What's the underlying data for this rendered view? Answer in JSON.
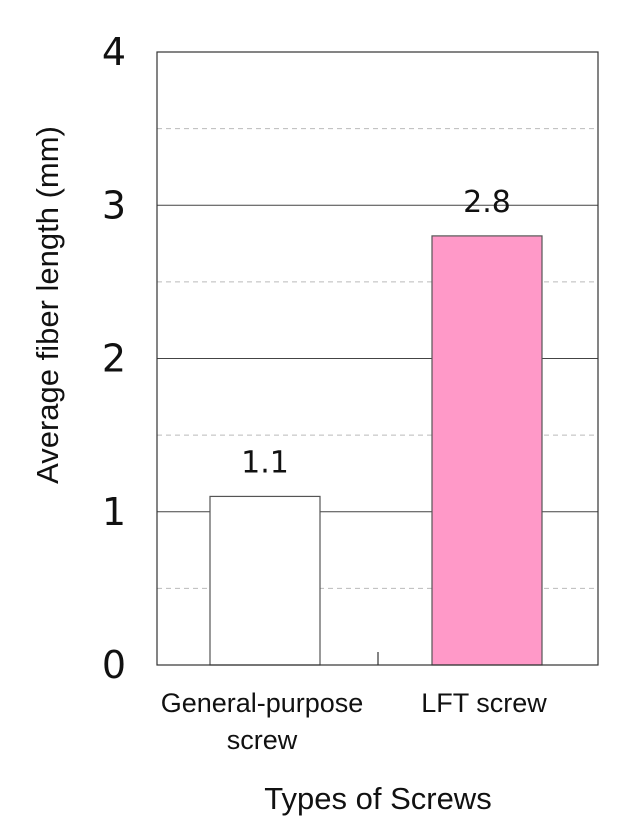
{
  "chart_data": {
    "type": "bar",
    "categories": [
      "General-purpose screw",
      "LFT screw"
    ],
    "category_lines": [
      [
        "General-purpose",
        "screw"
      ],
      [
        "LFT screw"
      ]
    ],
    "values": [
      1.1,
      2.8
    ],
    "value_labels": [
      "1.1",
      "2.8"
    ],
    "bar_colors": [
      "#ffffff",
      "#ff99c8"
    ],
    "ylim": [
      0,
      4
    ],
    "y_ticks": [
      0,
      1,
      2,
      3,
      4
    ],
    "y_tick_labels": [
      "0",
      "1",
      "2",
      "3",
      "4"
    ],
    "minor_gridlines": [
      0.5,
      1.5,
      2.5,
      3.5
    ],
    "grid": true,
    "xlabel": "Types of Screws",
    "ylabel": "Average fiber length (mm)",
    "title": ""
  },
  "colors": {
    "bar_stroke": "#555555",
    "major_grid": "#444444",
    "minor_grid": "#bbbbbb",
    "frame": "#333333"
  }
}
